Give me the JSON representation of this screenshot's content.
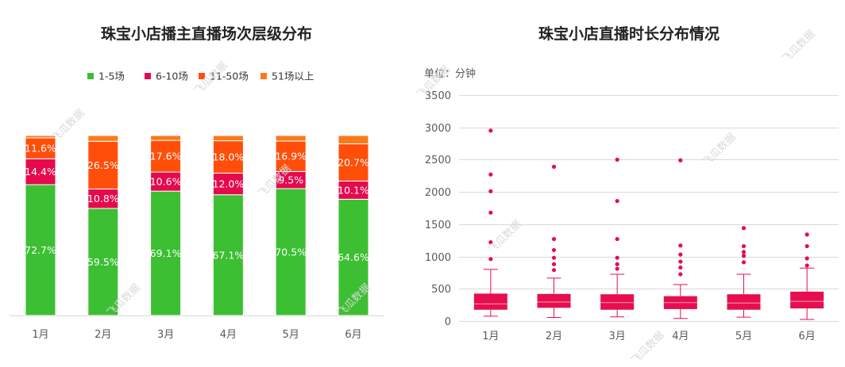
{
  "left_title": "珠宝小店播主直播场次层级分布",
  "right_title": "珠宝小店直播时长分布情况",
  "right_unit": "单位：分钟",
  "watermark": "飞瓜数据",
  "colors": {
    "s1": "#3cbf32",
    "s2": "#e6094e",
    "s3": "#ff4e0a",
    "s4": "#fa7a1a",
    "box": "#e60e4f",
    "axis": "#d9d9d9"
  },
  "chart_data": [
    {
      "type": "bar",
      "stacked": true,
      "title": "珠宝小店播主直播场次层级分布",
      "categories": [
        "1月",
        "2月",
        "3月",
        "4月",
        "5月",
        "6月"
      ],
      "series": [
        {
          "name": "1-5场",
          "values": [
            72.7,
            59.5,
            69.1,
            67.1,
            70.5,
            64.6
          ],
          "labels": [
            "72.7%",
            "59.5%",
            "69.1%",
            "67.1%",
            "70.5%",
            "64.6%"
          ]
        },
        {
          "name": "6-10场",
          "values": [
            14.4,
            10.8,
            10.6,
            12.0,
            9.5,
            10.1
          ],
          "labels": [
            "14.4%",
            "10.8%",
            "10.6%",
            "12.0%",
            "9.5%",
            "10.1%"
          ]
        },
        {
          "name": "11-50场",
          "values": [
            11.6,
            26.5,
            17.6,
            18.0,
            16.9,
            20.7
          ],
          "labels": [
            "11.6%",
            "26.5%",
            "17.6%",
            "18.0%",
            "16.9%",
            "20.7%"
          ]
        },
        {
          "name": "51场以上",
          "values": [
            1.3,
            3.2,
            2.7,
            2.9,
            3.1,
            4.6
          ]
        }
      ],
      "legend": "top"
    },
    {
      "type": "box",
      "title": "珠宝小店直播时长分布情况",
      "categories": [
        "1月",
        "2月",
        "3月",
        "4月",
        "5月",
        "6月"
      ],
      "ylim": [
        0,
        3500
      ],
      "yticks": [
        "0",
        "500",
        "1000",
        "1500",
        "2000",
        "2500",
        "3000",
        "3500"
      ],
      "grid": true,
      "boxes": [
        {
          "min": 75,
          "q1": 175,
          "median": 265,
          "q3": 425,
          "max": 800,
          "outliers": [
            960,
            1220,
            1680,
            2010,
            2270,
            2950
          ]
        },
        {
          "min": 55,
          "q1": 205,
          "median": 295,
          "q3": 420,
          "max": 665,
          "outliers": [
            790,
            880,
            980,
            1100,
            1270,
            2390
          ]
        },
        {
          "min": 65,
          "q1": 175,
          "median": 285,
          "q3": 415,
          "max": 725,
          "outliers": [
            810,
            880,
            980,
            1270,
            1860,
            2500
          ]
        },
        {
          "min": 40,
          "q1": 185,
          "median": 285,
          "q3": 385,
          "max": 565,
          "outliers": [
            725,
            830,
            920,
            1030,
            1170,
            2490
          ]
        },
        {
          "min": 60,
          "q1": 175,
          "median": 280,
          "q3": 415,
          "max": 725,
          "outliers": [
            910,
            1010,
            1070,
            1160,
            1440
          ]
        },
        {
          "min": 25,
          "q1": 195,
          "median": 305,
          "q3": 455,
          "max": 820,
          "outliers": [
            860,
            970,
            1160,
            1340
          ]
        }
      ]
    }
  ]
}
